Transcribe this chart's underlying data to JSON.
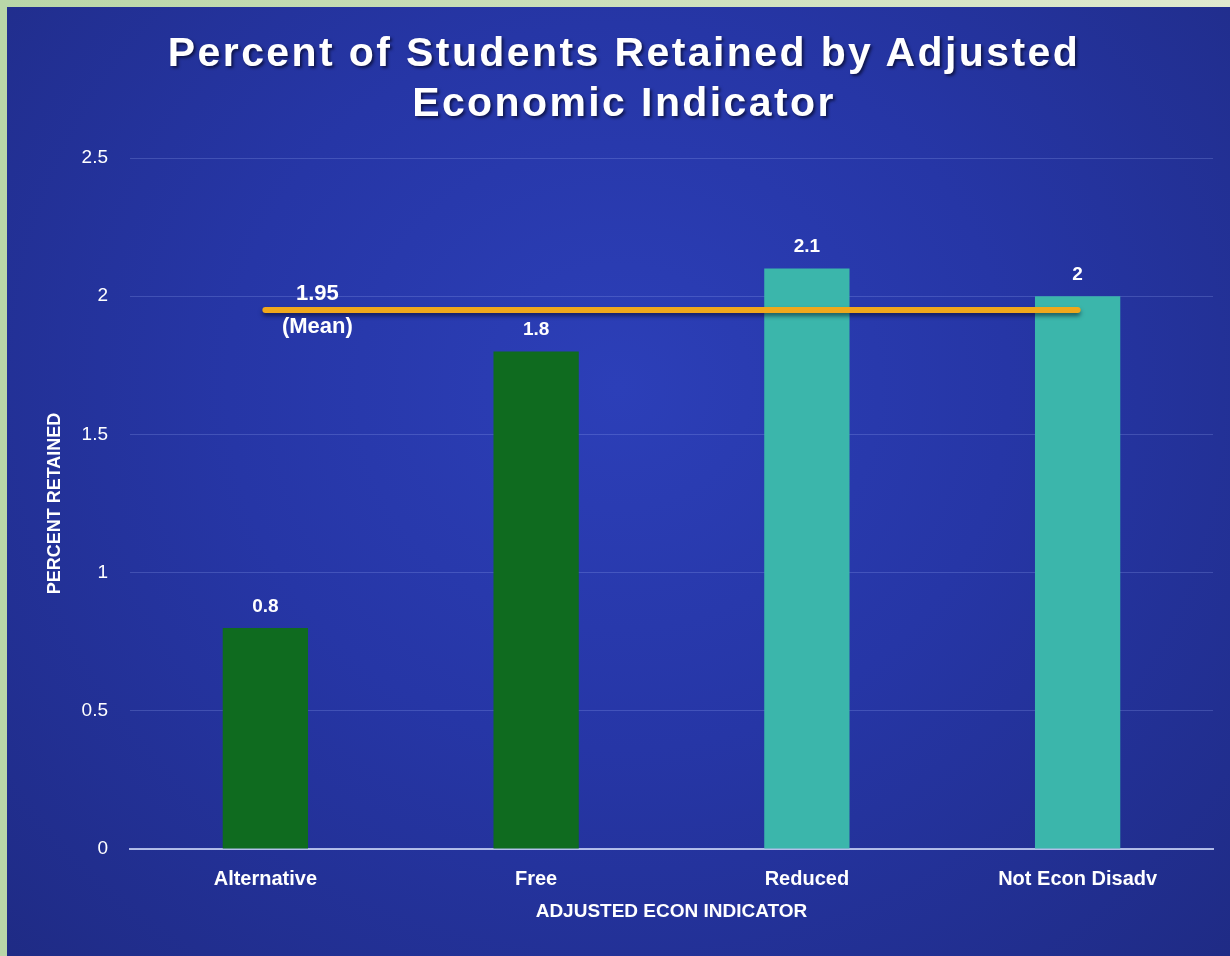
{
  "chart_data": {
    "type": "bar",
    "title": "Percent of Students Retained by Adjusted Economic Indicator",
    "xlabel": "ADJUSTED ECON INDICATOR",
    "ylabel": "PERCENT RETAINED",
    "categories": [
      "Alternative",
      "Free",
      "Reduced",
      "Not Econ Disadv"
    ],
    "values": [
      0.8,
      1.8,
      2.1,
      2
    ],
    "colors": [
      "#0f6b1f",
      "#0f6b1f",
      "#3bb6ab",
      "#3bb6ab"
    ],
    "ylim": [
      0,
      2.5
    ],
    "yticks": [
      0,
      0.5,
      1,
      1.5,
      2,
      2.5
    ],
    "grid": "y",
    "data_labels": true,
    "ref_lines": [
      {
        "axis": "y",
        "value": 1.95,
        "label": "1.95\n(Mean)",
        "color": "#f0a81c"
      }
    ]
  }
}
